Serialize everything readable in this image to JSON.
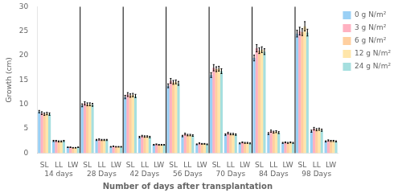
{
  "chart_data": {
    "type": "bar",
    "xlabel": "Number of days after transplantation",
    "ylabel": "Growth (cm)",
    "categories": [
      "SL",
      "LL",
      "LW",
      "SL",
      "LL",
      "LW",
      "SL",
      "LL",
      "LW",
      "SL",
      "LL",
      "LW",
      "SL",
      "LL",
      "LW",
      "SL",
      "LL",
      "LW",
      "SL",
      "LL",
      "LW"
    ],
    "group_labels": [
      "14 days",
      "28 Days",
      "42 Days",
      "56 Days",
      "70 Days",
      "84 Days",
      "98 Days"
    ],
    "series": [
      {
        "name": "0 g N/m²",
        "values": [
          8.5,
          2.5,
          1.2,
          9.8,
          2.7,
          1.3,
          11.5,
          3.3,
          1.7,
          13.8,
          3.5,
          1.8,
          16.0,
          3.8,
          2.0,
          19.5,
          4.0,
          2.1,
          24.5,
          4.5,
          2.4
        ],
        "errors": [
          0.25,
          0.12,
          0.06,
          0.3,
          0.12,
          0.06,
          0.35,
          0.15,
          0.08,
          0.4,
          0.15,
          0.08,
          0.5,
          0.15,
          0.1,
          0.6,
          0.2,
          0.1,
          0.7,
          0.22,
          0.12
        ]
      },
      {
        "name": "3 g N/m²",
        "values": [
          8.2,
          2.5,
          1.2,
          10.2,
          2.8,
          1.4,
          12.0,
          3.5,
          1.8,
          14.8,
          3.9,
          2.0,
          17.5,
          4.1,
          2.2,
          21.5,
          4.5,
          2.2,
          25.0,
          5.0,
          2.6
        ],
        "errors": [
          0.28,
          0.12,
          0.06,
          0.35,
          0.12,
          0.06,
          0.4,
          0.15,
          0.08,
          0.5,
          0.18,
          0.1,
          0.65,
          0.18,
          0.1,
          0.75,
          0.22,
          0.1,
          0.8,
          0.28,
          0.12
        ]
      },
      {
        "name": "6 g N/m²",
        "values": [
          8.0,
          2.4,
          1.1,
          10.0,
          2.7,
          1.3,
          11.8,
          3.4,
          1.7,
          14.5,
          3.7,
          1.9,
          17.2,
          3.9,
          2.1,
          21.0,
          4.3,
          2.1,
          24.8,
          4.8,
          2.5
        ],
        "errors": [
          0.25,
          0.12,
          0.06,
          0.3,
          0.12,
          0.06,
          0.35,
          0.15,
          0.08,
          0.4,
          0.15,
          0.08,
          0.5,
          0.15,
          0.1,
          0.6,
          0.2,
          0.1,
          0.7,
          0.22,
          0.12
        ]
      },
      {
        "name": "12 g N/m²",
        "values": [
          8.1,
          2.4,
          1.1,
          10.0,
          2.7,
          1.3,
          11.9,
          3.4,
          1.7,
          14.6,
          3.7,
          1.9,
          17.3,
          3.9,
          2.1,
          21.2,
          4.4,
          2.2,
          26.0,
          4.9,
          2.5
        ],
        "errors": [
          0.25,
          0.12,
          0.06,
          0.3,
          0.12,
          0.06,
          0.35,
          0.15,
          0.08,
          0.4,
          0.15,
          0.08,
          0.5,
          0.15,
          0.1,
          0.6,
          0.2,
          0.1,
          0.95,
          0.22,
          0.12
        ]
      },
      {
        "name": "24 g N/m²",
        "values": [
          8.0,
          2.5,
          1.2,
          9.9,
          2.7,
          1.3,
          11.7,
          3.3,
          1.7,
          14.3,
          3.6,
          1.8,
          16.8,
          3.8,
          2.0,
          20.8,
          4.2,
          2.1,
          24.7,
          4.7,
          2.4
        ],
        "errors": [
          0.25,
          0.12,
          0.06,
          0.3,
          0.12,
          0.06,
          0.35,
          0.15,
          0.08,
          0.4,
          0.15,
          0.08,
          0.5,
          0.15,
          0.1,
          0.6,
          0.2,
          0.1,
          0.7,
          0.22,
          0.12
        ]
      }
    ],
    "ylim": [
      0,
      30
    ],
    "yticks": [
      0,
      5,
      10,
      15,
      20,
      25,
      30
    ],
    "grid": false,
    "legend": "right"
  }
}
